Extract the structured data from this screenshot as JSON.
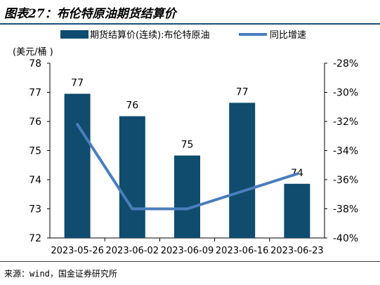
{
  "header": {
    "title": "图表27：布伦特原油期货结算价"
  },
  "footer": {
    "source": "来源：wind，国金证券研究所"
  },
  "colors": {
    "bar": "#0f4c6e",
    "line": "#4a7ebb",
    "title_rule": "#1c4f78"
  },
  "chart_data": {
    "type": "bar",
    "categories": [
      "2023-05-26",
      "2023-06-02",
      "2023-06-09",
      "2023-06-16",
      "2023-06-23"
    ],
    "series": [
      {
        "name": "期货结算价(连续):布伦特原油",
        "type": "bar",
        "axis": "left",
        "values": [
          76.95,
          76.18,
          74.83,
          76.64,
          73.86
        ],
        "data_labels": [
          "77",
          "76",
          "75",
          "77",
          "74"
        ]
      },
      {
        "name": "同比增速",
        "type": "line",
        "axis": "right",
        "values": [
          -32.2,
          -38.0,
          -38.0,
          -36.8,
          -35.6
        ]
      }
    ],
    "y_left": {
      "label": "(美元/桶 )",
      "min": 72,
      "max": 78,
      "ticks": [
        "72",
        "73",
        "74",
        "75",
        "76",
        "77",
        "78"
      ]
    },
    "y_right": {
      "min": -40,
      "max": -28,
      "ticks": [
        "-40%",
        "-38%",
        "-36%",
        "-34%",
        "-32%",
        "-30%",
        "-28%"
      ]
    },
    "legend_position": "top",
    "grid": false
  }
}
